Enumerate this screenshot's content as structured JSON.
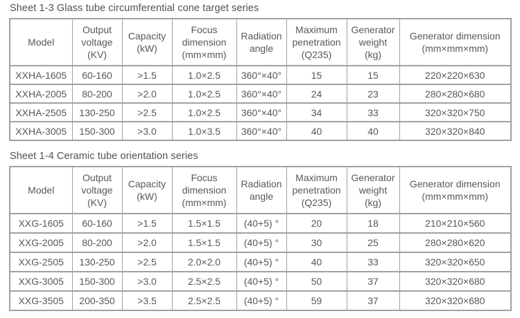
{
  "colors": {
    "border": "#a0a0a0",
    "text": "#565859",
    "background": "#ffffff"
  },
  "tables": [
    {
      "title": "Sheet 1-3 Glass tube circumferential cone target series",
      "headers": [
        "Model",
        "Output\nvoltage\n(KV)",
        "Capacity\n(kW)",
        "Focus\ndimension\n(mm×mm)",
        "Radiation\nangle",
        "Maximum\npenetration\n(Q235)",
        "Generator\nweight\n(kg)",
        "Generator dimension\n(mm×mm×mm)"
      ],
      "rows": [
        [
          "XXHA-1605",
          "60-160",
          ">1.5",
          "1.0×2.5",
          "360°×40°",
          "15",
          "15",
          "220×220×630"
        ],
        [
          "XXHA-2005",
          "80-200",
          ">2.0",
          "1.0×2.5",
          "360°×40°",
          "24",
          "23",
          "280×280×680"
        ],
        [
          "XXHA-2505",
          "130-250",
          ">2.5",
          "1.0×2.5",
          "360°×40°",
          "34",
          "33",
          "320×320×750"
        ],
        [
          "XXHA-3005",
          "150-300",
          ">3.0",
          "1.0×3.5",
          "360°×40°",
          "40",
          "40",
          "320×320×840"
        ]
      ]
    },
    {
      "title": "Sheet 1-4 Ceramic tube orientation series",
      "headers": [
        "Model",
        "Output\nvoltage\n(KV)",
        "Capacity\n(kW)",
        "Focus\ndimension\n(mm×mm)",
        "Radiation\nangle",
        "Maximum\npenetration\n(Q235)",
        "Generator\nweight\n(kg)",
        "Generator dimension\n(mm×mm×mm)"
      ],
      "rows": [
        [
          "XXG-1605",
          "60-160",
          ">1.5",
          "1.5×1.5",
          "(40+5) °",
          "20",
          "18",
          "210×210×560"
        ],
        [
          "XXG-2005",
          "80-200",
          ">2.0",
          "1.5×1.5",
          "(40+5) °",
          "30",
          "25",
          "280×280×620"
        ],
        [
          "XXG-2505",
          "130-250",
          ">2.5",
          "2.0×2.0",
          "(40+5) °",
          "40",
          "33",
          "320×320×650"
        ],
        [
          "XXG-3005",
          "150-300",
          ">3.0",
          "2.5×2.5",
          "(40+5) °",
          "50",
          "37",
          "320×320×680"
        ],
        [
          "XXG-3505",
          "200-350",
          ">3.5",
          "2.5×2.5",
          "(40+5) °",
          "59",
          "37",
          "320×320×680"
        ]
      ]
    }
  ]
}
